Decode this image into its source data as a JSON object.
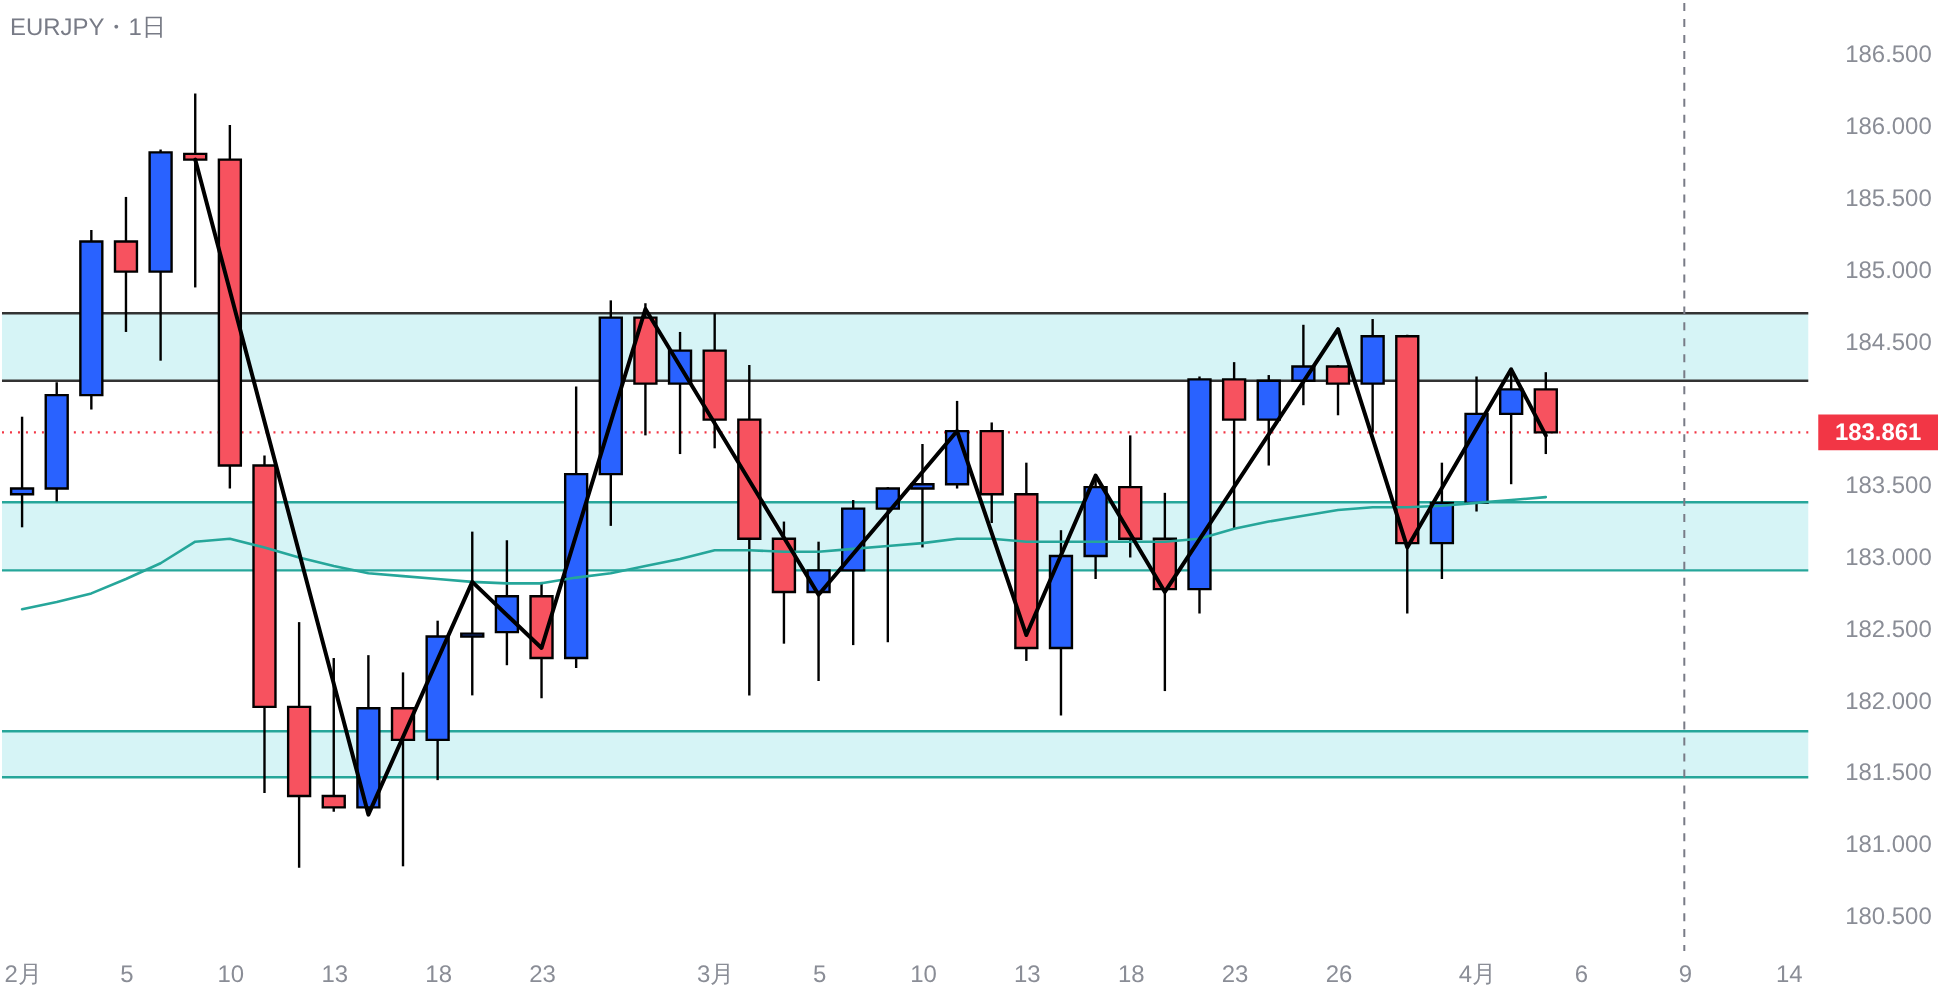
{
  "chart_data": {
    "type": "candlestick",
    "title": "EURJPY・1日",
    "categories": [
      "2月",
      null,
      null,
      "5",
      null,
      null,
      "10",
      null,
      null,
      "13",
      null,
      null,
      "18",
      null,
      null,
      "23",
      null,
      null,
      null,
      null,
      "3月",
      null,
      null,
      "5",
      null,
      null,
      "10",
      null,
      null,
      "13",
      null,
      null,
      "18",
      null,
      null,
      "23",
      null,
      null,
      "26",
      null,
      null,
      null,
      "4月",
      null,
      null,
      "6",
      null,
      null,
      "9",
      null,
      null,
      "14"
    ],
    "ohlc": [
      [
        183.43,
        183.97,
        183.2,
        183.47
      ],
      [
        183.47,
        184.21,
        183.38,
        184.12
      ],
      [
        184.12,
        185.27,
        184.02,
        185.19
      ],
      [
        185.19,
        185.5,
        184.56,
        184.98
      ],
      [
        184.98,
        185.83,
        184.36,
        185.81
      ],
      [
        185.8,
        186.22,
        184.87,
        185.76
      ],
      [
        185.76,
        186.0,
        183.47,
        183.63
      ],
      [
        183.63,
        183.7,
        181.35,
        181.95
      ],
      [
        181.95,
        182.54,
        180.83,
        181.33
      ],
      [
        181.33,
        182.29,
        181.22,
        181.25
      ],
      [
        181.25,
        182.31,
        181.2,
        181.94
      ],
      [
        181.94,
        182.19,
        180.84,
        181.72
      ],
      [
        181.72,
        182.55,
        181.44,
        182.44
      ],
      [
        182.44,
        183.17,
        182.03,
        182.46
      ],
      [
        182.47,
        183.11,
        182.24,
        182.72
      ],
      [
        182.72,
        182.82,
        182.01,
        182.29
      ],
      [
        182.29,
        184.18,
        182.22,
        183.57
      ],
      [
        183.57,
        184.78,
        183.21,
        184.66
      ],
      [
        184.66,
        184.76,
        183.84,
        184.2
      ],
      [
        184.2,
        184.56,
        183.71,
        184.43
      ],
      [
        184.43,
        184.69,
        183.75,
        183.95
      ],
      [
        183.95,
        184.33,
        182.03,
        183.12
      ],
      [
        183.12,
        183.24,
        182.39,
        182.75
      ],
      [
        182.75,
        183.1,
        182.13,
        182.9
      ],
      [
        182.9,
        183.39,
        182.38,
        183.33
      ],
      [
        183.33,
        183.48,
        182.4,
        183.47
      ],
      [
        183.47,
        183.78,
        183.06,
        183.5
      ],
      [
        183.5,
        184.08,
        183.47,
        183.87
      ],
      [
        183.87,
        183.93,
        183.23,
        183.43
      ],
      [
        183.43,
        183.65,
        182.27,
        182.36
      ],
      [
        182.36,
        183.18,
        181.89,
        183.0
      ],
      [
        183.0,
        183.55,
        182.84,
        183.48
      ],
      [
        183.48,
        183.84,
        182.99,
        183.12
      ],
      [
        183.12,
        183.44,
        182.06,
        182.77
      ],
      [
        182.77,
        184.25,
        182.6,
        184.23
      ],
      [
        184.23,
        184.35,
        183.19,
        183.95
      ],
      [
        183.95,
        184.26,
        183.63,
        184.22
      ],
      [
        184.22,
        184.61,
        184.05,
        184.32
      ],
      [
        184.32,
        184.33,
        183.98,
        184.2
      ],
      [
        184.2,
        184.65,
        183.86,
        184.53
      ],
      [
        184.53,
        184.54,
        182.6,
        183.09
      ],
      [
        183.09,
        183.65,
        182.84,
        183.37
      ],
      [
        183.37,
        184.25,
        183.31,
        183.99
      ],
      [
        183.99,
        184.3,
        183.5,
        184.16
      ],
      [
        184.16,
        184.28,
        183.71,
        183.861
      ],
      null,
      null,
      null,
      null,
      null,
      null,
      null
    ],
    "colors": [
      "#2962ff",
      "#2962ff",
      "#2962ff",
      "#f7525f",
      "#2962ff",
      "#f7525f",
      "#f7525f",
      "#f7525f",
      "#f7525f",
      "#f7525f",
      "#2962ff",
      "#f7525f",
      "#2962ff",
      "#2962ff",
      "#2962ff",
      "#f7525f",
      "#2962ff",
      "#2962ff",
      "#f7525f",
      "#2962ff",
      "#f7525f",
      "#f7525f",
      "#f7525f",
      "#2962ff",
      "#2962ff",
      "#2962ff",
      "#2962ff",
      "#2962ff",
      "#f7525f",
      "#f7525f",
      "#2962ff",
      "#2962ff",
      "#f7525f",
      "#f7525f",
      "#2962ff",
      "#f7525f",
      "#2962ff",
      "#2962ff",
      "#f7525f",
      "#2962ff",
      "#f7525f",
      "#2962ff",
      "#2962ff",
      "#2962ff",
      "#f7525f",
      null,
      null,
      null,
      null,
      null,
      null,
      null
    ],
    "series": [
      {
        "type": "line",
        "color": "#26a69a",
        "values": [
          182.63,
          182.68,
          182.74,
          182.84,
          182.95,
          183.1,
          183.12,
          183.06,
          182.99,
          182.93,
          182.88,
          182.86,
          182.84,
          182.82,
          182.81,
          182.81,
          182.85,
          182.88,
          182.93,
          182.98,
          183.04,
          183.04,
          183.03,
          183.03,
          183.05,
          183.07,
          183.09,
          183.12,
          183.12,
          183.1,
          183.1,
          183.1,
          183.1,
          183.1,
          183.12,
          183.19,
          183.24,
          183.28,
          183.32,
          183.34,
          183.34,
          183.35,
          183.37,
          183.39,
          183.41,
          null,
          null,
          null,
          null,
          null,
          null,
          null
        ]
      },
      {
        "type": "line",
        "color": "#000000",
        "values": [
          null,
          null,
          null,
          null,
          null,
          185.76,
          null,
          null,
          null,
          null,
          181.2,
          null,
          null,
          182.82,
          null,
          182.36,
          null,
          null,
          184.72,
          null,
          null,
          null,
          null,
          182.73,
          null,
          null,
          null,
          183.87,
          null,
          182.45,
          null,
          183.56,
          null,
          182.75,
          null,
          null,
          null,
          null,
          184.58,
          null,
          183.06,
          null,
          null,
          184.3,
          183.84,
          null,
          null,
          null,
          null,
          null,
          null,
          null
        ]
      }
    ],
    "ylim": [
      180.25,
      186.85
    ],
    "yticks": [
      {
        "value": 180.5,
        "label": "180.500"
      },
      {
        "value": 181,
        "label": "181.000"
      },
      {
        "value": 181.5,
        "label": "181.500"
      },
      {
        "value": 182,
        "label": "182.000"
      },
      {
        "value": 182.5,
        "label": "182.500"
      },
      {
        "value": 183,
        "label": "183.000"
      },
      {
        "value": 183.5,
        "label": "183.500"
      },
      {
        "value": 184.5,
        "label": "184.500"
      },
      {
        "value": 185,
        "label": "185.000"
      },
      {
        "value": 185.5,
        "label": "185.500"
      },
      {
        "value": 186,
        "label": "186.000"
      },
      {
        "value": 186.5,
        "label": "186.500"
      }
    ],
    "bands": [
      {
        "axis": "y",
        "from": 184.22,
        "to": 184.69,
        "color": "#d6f4f6"
      },
      {
        "axis": "y",
        "from": 182.9,
        "to": 183.375,
        "color": "#d6f4f6"
      },
      {
        "axis": "y",
        "from": 181.46,
        "to": 181.78,
        "color": "#d6f4f6"
      }
    ],
    "ref_lines": [
      {
        "axis": "y",
        "value": 184.69,
        "color": "#333333"
      },
      {
        "axis": "y",
        "value": 184.22,
        "color": "#333333"
      },
      {
        "axis": "y",
        "value": 183.375,
        "color": "#26a69a"
      },
      {
        "axis": "y",
        "value": 182.9,
        "color": "#26a69a"
      },
      {
        "axis": "y",
        "value": 181.78,
        "color": "#26a69a"
      },
      {
        "axis": "y",
        "value": 181.46,
        "color": "#26a69a"
      },
      {
        "axis": "y",
        "value": 183.861,
        "label": "183.861",
        "color": "#f23645",
        "line_style": "dotted"
      },
      {
        "axis": "x",
        "value": "9",
        "color": "#787b86",
        "line_style": "dashed"
      }
    ]
  }
}
